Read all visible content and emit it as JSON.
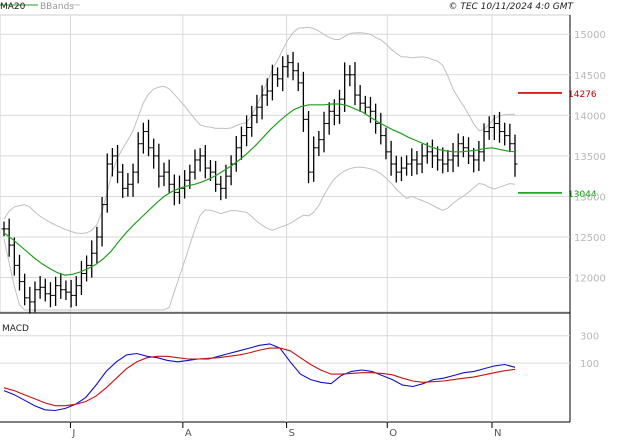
{
  "header": {
    "ma_label": "MA20",
    "bb_label": "BBands",
    "source": "© TEC 10/11/2024 4:0 GMT"
  },
  "macd_panel": {
    "title": "MACD"
  },
  "colors": {
    "ma": "#20a020",
    "bands": "#c0c0c0",
    "resistance": "#cc0000",
    "support": "#009900",
    "macd": "#1010cc",
    "signal": "#cc1010",
    "bars": "#000000"
  },
  "chart_data": [
    {
      "type": "ohlc",
      "title": "",
      "xlabel": "",
      "ylabel": "",
      "ylim": [
        11600,
        15200
      ],
      "y_ticks": [
        "15000",
        "14500",
        "14000",
        "13500",
        "13000",
        "12500",
        "12000"
      ],
      "x_ticks": [
        "J",
        "A",
        "S",
        "O",
        "N"
      ],
      "levels": [
        {
          "label": "14276",
          "value": 14276,
          "color": "resistance"
        },
        {
          "label": "13044",
          "value": 13044,
          "color": "support"
        }
      ],
      "close": [
        12600,
        12400,
        12150,
        11950,
        11750,
        11700,
        11850,
        11880,
        11800,
        11780,
        11900,
        11850,
        11820,
        11780,
        11900,
        12050,
        12150,
        12300,
        12500,
        12900,
        13400,
        13500,
        13300,
        13100,
        13150,
        13300,
        13650,
        13800,
        13600,
        13500,
        13250,
        13300,
        13150,
        13050,
        13100,
        13200,
        13300,
        13450,
        13500,
        13350,
        13300,
        13150,
        13100,
        13250,
        13400,
        13600,
        13750,
        13850,
        14000,
        14100,
        14250,
        14300,
        14500,
        14450,
        14600,
        14650,
        14550,
        14400,
        13950,
        13300,
        13600,
        13700,
        13900,
        14050,
        14000,
        14200,
        14500,
        14500,
        14250,
        14150,
        14100,
        14050,
        13900,
        13750,
        13550,
        13400,
        13300,
        13350,
        13400,
        13450,
        13400,
        13500,
        13550,
        13500,
        13450,
        13400,
        13450,
        13500,
        13650,
        13600,
        13500,
        13450,
        13550,
        13800,
        13850,
        13900,
        13800,
        13750,
        13650,
        13400
      ],
      "ma20": [
        12550,
        12480,
        12400,
        12320,
        12240,
        12170,
        12110,
        12060,
        12030,
        12040,
        12070,
        12110,
        12160,
        12230,
        12320,
        12440,
        12550,
        12650,
        12740,
        12830,
        12920,
        13000,
        13060,
        13100,
        13130,
        13150,
        13180,
        13220,
        13270,
        13330,
        13390,
        13460,
        13540,
        13630,
        13730,
        13830,
        13920,
        14000,
        14070,
        14110,
        14130,
        14130,
        14130,
        14140,
        14140,
        14120,
        14080,
        14040,
        13980,
        13920,
        13870,
        13820,
        13780,
        13730,
        13690,
        13650,
        13610,
        13580,
        13560,
        13550,
        13550,
        13560,
        13570,
        13590,
        13600,
        13580,
        13560,
        13550
      ]
    },
    {
      "type": "line",
      "title": "MACD",
      "ylim": [
        -300,
        400
      ],
      "y_ticks": [
        "300",
        "100"
      ],
      "series": [
        {
          "name": "",
          "color": "macd",
          "values": [
            -100,
            -130,
            -170,
            -210,
            -240,
            -245,
            -230,
            -200,
            -150,
            -60,
            40,
            110,
            160,
            170,
            150,
            140,
            120,
            110,
            120,
            130,
            130,
            150,
            170,
            190,
            210,
            230,
            240,
            210,
            110,
            20,
            -20,
            -40,
            -50,
            10,
            40,
            50,
            40,
            10,
            -20,
            -60,
            -70,
            -50,
            -20,
            -10,
            10,
            30,
            40,
            60,
            80,
            90,
            70
          ]
        },
        {
          "name": "",
          "color": "signal",
          "values": [
            -80,
            -100,
            -130,
            -160,
            -190,
            -210,
            -210,
            -200,
            -180,
            -140,
            -80,
            -10,
            60,
            110,
            140,
            150,
            150,
            140,
            130,
            130,
            135,
            140,
            150,
            160,
            175,
            195,
            210,
            210,
            190,
            140,
            90,
            50,
            20,
            20,
            25,
            30,
            30,
            25,
            15,
            -10,
            -30,
            -40,
            -35,
            -30,
            -20,
            -10,
            0,
            15,
            30,
            45,
            55
          ]
        }
      ]
    }
  ]
}
